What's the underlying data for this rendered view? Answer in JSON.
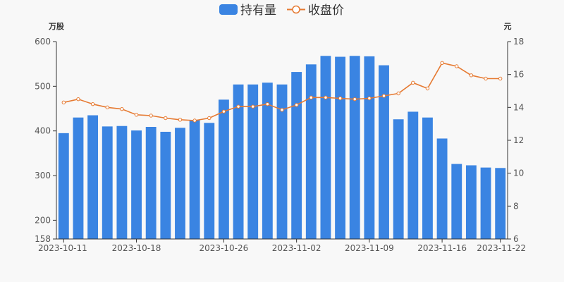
{
  "colors": {
    "bar": "#3a84e2",
    "line": "#e67a32",
    "point_fill": "#ffffff",
    "axis": "#333333",
    "text": "#555555"
  },
  "chart_data": {
    "type": "bar",
    "dates": [
      "2023-10-11",
      "2023-10-12",
      "2023-10-13",
      "2023-10-16",
      "2023-10-17",
      "2023-10-18",
      "2023-10-19",
      "2023-10-20",
      "2023-10-23",
      "2023-10-24",
      "2023-10-25",
      "2023-10-26",
      "2023-10-27",
      "2023-10-30",
      "2023-10-31",
      "2023-11-01",
      "2023-11-02",
      "2023-11-03",
      "2023-11-06",
      "2023-11-07",
      "2023-11-08",
      "2023-11-09",
      "2023-11-10",
      "2023-11-13",
      "2023-11-14",
      "2023-11-15",
      "2023-11-16",
      "2023-11-17",
      "2023-11-20",
      "2023-11-21",
      "2023-11-22"
    ],
    "x_tick_labels": [
      "2023-10-11",
      "2023-10-18",
      "2023-10-26",
      "2023-11-02",
      "2023-11-09",
      "2023-11-16",
      "2023-11-22"
    ],
    "series": [
      {
        "name": "持有量",
        "type": "bar",
        "axis": "left",
        "values": [
          395,
          430,
          435,
          410,
          411,
          401,
          409,
          398,
          407,
          424,
          418,
          470,
          504,
          504,
          508,
          504,
          532,
          549,
          568,
          566,
          568,
          567,
          547,
          426,
          443,
          430,
          383,
          326,
          323,
          318,
          317
        ]
      },
      {
        "name": "收盘价",
        "type": "line",
        "axis": "right",
        "values": [
          14.3,
          14.5,
          14.2,
          14.0,
          13.9,
          13.55,
          13.5,
          13.35,
          13.25,
          13.2,
          13.35,
          13.75,
          14.05,
          14.05,
          14.2,
          13.85,
          14.15,
          14.6,
          14.6,
          14.55,
          14.5,
          14.55,
          14.7,
          14.85,
          15.5,
          15.15,
          16.7,
          16.5,
          15.95,
          15.75,
          15.75
        ]
      }
    ],
    "y_left": {
      "unit": "万股",
      "min": 158,
      "max": 600,
      "ticks": [
        158,
        200,
        300,
        400,
        500,
        600
      ]
    },
    "y_right": {
      "unit": "元",
      "min": 6,
      "max": 18,
      "ticks": [
        6,
        8,
        10,
        12,
        14,
        16,
        18
      ]
    },
    "legend_position": "top-center",
    "grid": false
  }
}
